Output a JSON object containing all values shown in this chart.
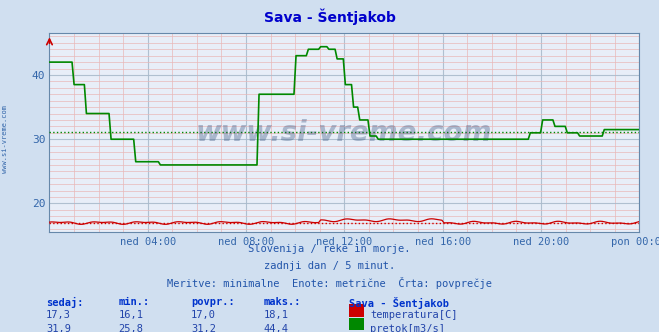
{
  "title": "Sava - Šentjakob",
  "bg_color": "#d0dff0",
  "plot_bg_color": "#e8eef8",
  "title_color": "#0000cc",
  "axis_label_color": "#3366aa",
  "text_color": "#2255aa",
  "info_lines": [
    "Slovenija / reke in morje.",
    "zadnji dan / 5 minut.",
    "Meritve: minimalne  Enote: metrične  Črta: povprečje"
  ],
  "xlabel_ticks": [
    "ned 04:00",
    "ned 08:00",
    "ned 12:00",
    "ned 16:00",
    "ned 20:00",
    "pon 00:00"
  ],
  "ylim_min": 15.5,
  "ylim_max": 46.5,
  "yticks": [
    20,
    30,
    40
  ],
  "temp_avg": 17.0,
  "flow_avg": 31.2,
  "temp_color": "#cc0000",
  "flow_color": "#008800",
  "watermark": "www.si-vreme.com",
  "watermark_color": "#1a3a6a",
  "sidebar_text": "www.si-vreme.com",
  "n_points": 288,
  "legend_title": "Sava - Šentjakob",
  "legend_entries": [
    "temperatura[C]",
    "pretok[m3/s]"
  ],
  "legend_colors": [
    "#cc0000",
    "#008800"
  ],
  "table_headers": [
    "sedaj:",
    "min.:",
    "povpr.:",
    "maks.:"
  ],
  "temp_row": [
    "17,3",
    "16,1",
    "17,0",
    "18,1"
  ],
  "flow_row": [
    "31,9",
    "25,8",
    "31,2",
    "44,4"
  ]
}
